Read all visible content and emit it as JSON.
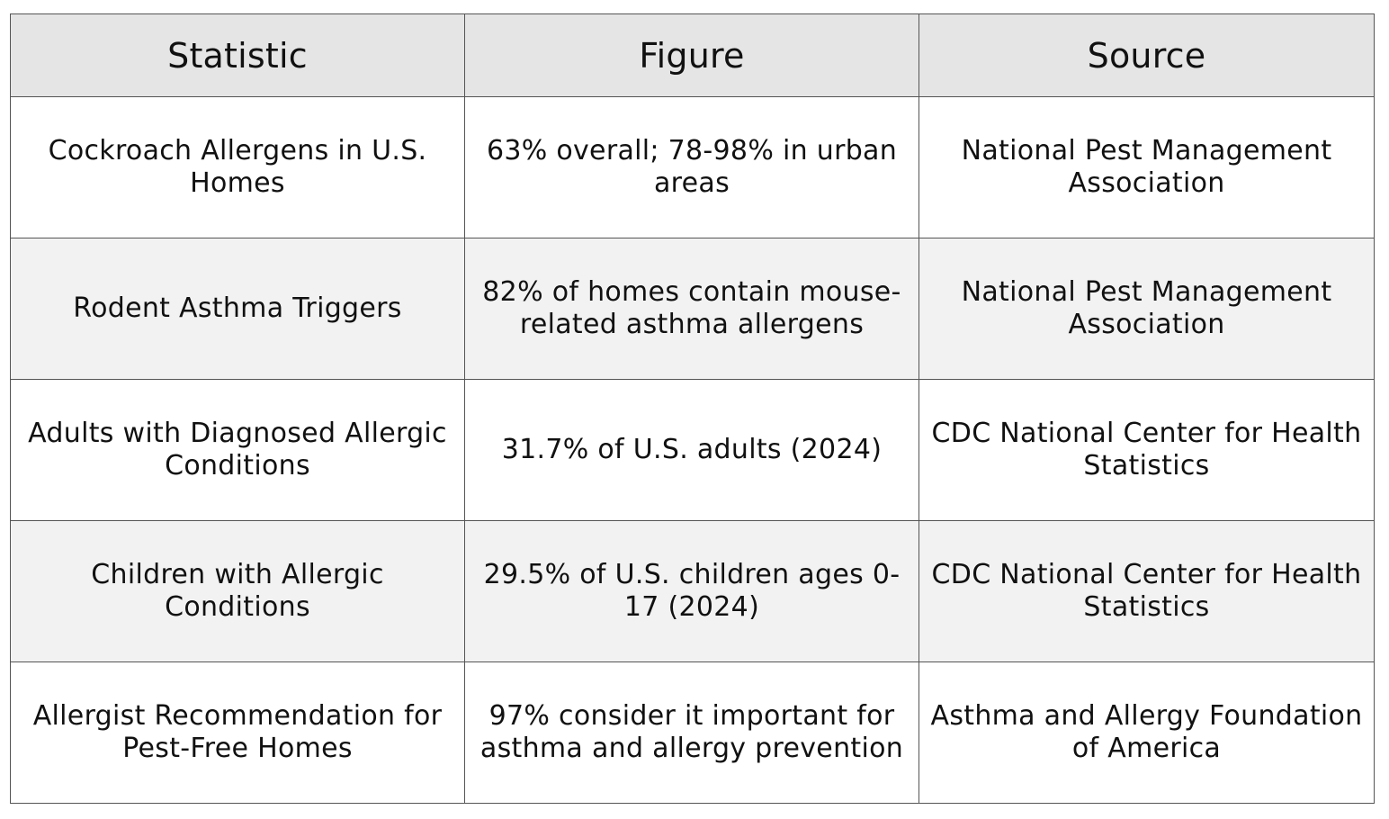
{
  "table": {
    "headers": [
      "Statistic",
      "Figure",
      "Source"
    ],
    "rows": [
      [
        "Cockroach Allergens in U.S. Homes",
        "63% overall; 78-98% in urban areas",
        "National Pest Management Association"
      ],
      [
        "Rodent Asthma Triggers",
        "82% of homes contain mouse-related asthma allergens",
        "National Pest Management Association"
      ],
      [
        "Adults with Diagnosed Allergic Conditions",
        "31.7% of U.S. adults (2024)",
        "CDC National Center for Health Statistics"
      ],
      [
        "Children with Allergic Conditions",
        "29.5% of U.S. children ages 0-17 (2024)",
        "CDC National Center for Health Statistics"
      ],
      [
        "Allergist Recommendation for Pest-Free Homes",
        "97% consider it important for asthma and allergy prevention",
        "Asthma and Allergy Foundation of America"
      ]
    ]
  },
  "colors": {
    "header_bg": "#e5e5e5",
    "stripe_bg": "#f2f2f2",
    "border": "#555555",
    "text": "#111111"
  }
}
